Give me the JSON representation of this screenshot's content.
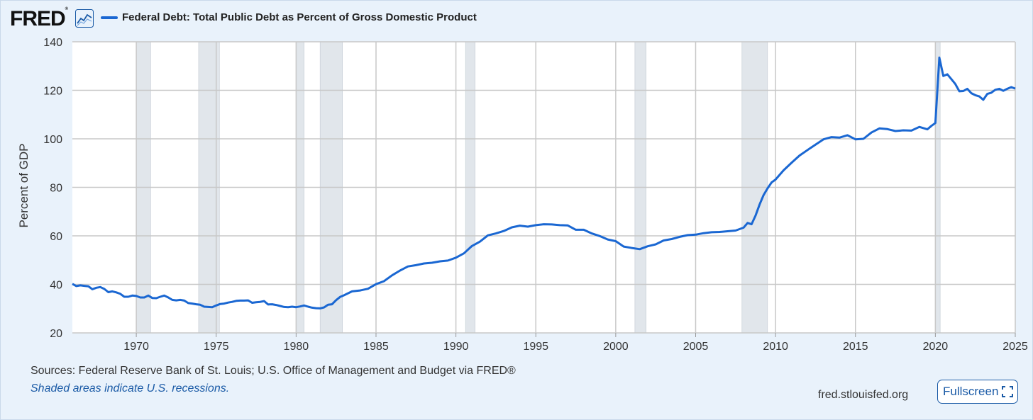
{
  "header": {
    "logo": "FRED",
    "title": "Federal Debt: Total Public Debt as Percent of Gross Domestic Product"
  },
  "footer": {
    "sources": "Sources: Federal Reserve Bank of St. Louis; U.S. Office of Management and Budget via FRED®",
    "recessions_note": "Shaded areas indicate U.S. recessions.",
    "site": "fred.stlouisfed.org",
    "fullscreen_label": "Fullscreen"
  },
  "colors": {
    "line": "#1a67d2",
    "recession": "#e1e6eb",
    "grid": "#c8c8c8",
    "background": "#e9f2fb"
  },
  "icons": [
    "fred-chart-icon",
    "fullscreen-icon"
  ],
  "chart_data": {
    "type": "line",
    "title": "Federal Debt: Total Public Debt as Percent of Gross Domestic Product",
    "xlabel": "",
    "ylabel": "Percent of GDP",
    "xlim": [
      1966,
      2025
    ],
    "ylim": [
      20,
      140
    ],
    "xticks": [
      1970,
      1975,
      1980,
      1985,
      1990,
      1995,
      2000,
      2005,
      2010,
      2015,
      2020,
      2025
    ],
    "yticks": [
      20,
      40,
      60,
      80,
      100,
      120,
      140
    ],
    "grid": true,
    "recessions": [
      [
        1970.0,
        1970.9
      ],
      [
        1973.9,
        1975.2
      ],
      [
        1980.0,
        1980.5
      ],
      [
        1981.5,
        1982.9
      ],
      [
        1990.6,
        1991.2
      ],
      [
        2001.2,
        2001.9
      ],
      [
        2007.9,
        2009.5
      ],
      [
        2020.0,
        2020.3
      ]
    ],
    "series": [
      {
        "name": "Federal Debt: Total Public Debt as Percent of Gross Domestic Product",
        "x": [
          1966.0,
          1966.25,
          1966.5,
          1966.75,
          1967.0,
          1967.25,
          1967.5,
          1967.75,
          1968.0,
          1968.25,
          1968.5,
          1968.75,
          1969.0,
          1969.25,
          1969.5,
          1969.75,
          1970.0,
          1970.25,
          1970.5,
          1970.75,
          1971.0,
          1971.25,
          1971.5,
          1971.75,
          1972.0,
          1972.25,
          1972.5,
          1972.75,
          1973.0,
          1973.25,
          1973.5,
          1973.75,
          1974.0,
          1974.25,
          1974.5,
          1974.75,
          1975.0,
          1975.25,
          1975.5,
          1975.75,
          1976.0,
          1976.25,
          1976.5,
          1976.75,
          1977.0,
          1977.25,
          1977.5,
          1977.75,
          1978.0,
          1978.25,
          1978.5,
          1978.75,
          1979.0,
          1979.25,
          1979.5,
          1979.75,
          1980.0,
          1980.25,
          1980.5,
          1980.75,
          1981.0,
          1981.25,
          1981.5,
          1981.75,
          1982.0,
          1982.25,
          1982.5,
          1982.75,
          1983.0,
          1983.5,
          1984.0,
          1984.5,
          1985.0,
          1985.5,
          1986.0,
          1986.5,
          1987.0,
          1987.5,
          1988.0,
          1988.5,
          1989.0,
          1989.5,
          1990.0,
          1990.5,
          1991.0,
          1991.5,
          1992.0,
          1992.5,
          1993.0,
          1993.5,
          1994.0,
          1994.5,
          1995.0,
          1995.5,
          1996.0,
          1996.5,
          1997.0,
          1997.5,
          1998.0,
          1998.5,
          1999.0,
          1999.5,
          2000.0,
          2000.5,
          2001.0,
          2001.5,
          2002.0,
          2002.5,
          2003.0,
          2003.5,
          2004.0,
          2004.5,
          2005.0,
          2005.5,
          2006.0,
          2006.5,
          2007.0,
          2007.5,
          2008.0,
          2008.25,
          2008.5,
          2008.75,
          2009.0,
          2009.25,
          2009.5,
          2009.75,
          2010.0,
          2010.5,
          2011.0,
          2011.5,
          2012.0,
          2012.5,
          2013.0,
          2013.5,
          2014.0,
          2014.5,
          2015.0,
          2015.5,
          2016.0,
          2016.5,
          2017.0,
          2017.5,
          2018.0,
          2018.5,
          2019.0,
          2019.5,
          2019.75,
          2020.0,
          2020.25,
          2020.5,
          2020.75,
          2021.0,
          2021.25,
          2021.5,
          2021.75,
          2022.0,
          2022.25,
          2022.5,
          2022.75,
          2023.0,
          2023.25,
          2023.5,
          2023.75,
          2024.0,
          2024.25,
          2024.5,
          2024.75,
          2025.0
        ],
        "values": [
          40.2,
          39.3,
          39.6,
          39.4,
          39.2,
          38.0,
          38.6,
          38.9,
          38.1,
          36.8,
          37.1,
          36.7,
          36.1,
          34.9,
          34.9,
          35.4,
          35.2,
          34.6,
          34.6,
          35.4,
          34.4,
          34.3,
          34.9,
          35.4,
          34.6,
          33.6,
          33.4,
          33.6,
          33.3,
          32.3,
          32.1,
          31.8,
          31.6,
          30.8,
          30.7,
          30.6,
          31.3,
          31.9,
          32.1,
          32.5,
          32.8,
          33.2,
          33.3,
          33.3,
          33.4,
          32.4,
          32.6,
          32.8,
          33.1,
          31.7,
          31.8,
          31.5,
          31.1,
          30.7,
          30.6,
          30.8,
          30.6,
          30.9,
          31.3,
          30.8,
          30.4,
          30.2,
          30.1,
          30.5,
          31.6,
          31.8,
          33.5,
          34.8,
          35.5,
          37.1,
          37.5,
          38.2,
          40.1,
          41.3,
          43.7,
          45.7,
          47.4,
          47.9,
          48.6,
          48.9,
          49.5,
          49.8,
          51.0,
          52.8,
          55.8,
          57.6,
          60.2,
          61.0,
          62.0,
          63.5,
          64.2,
          63.8,
          64.4,
          64.8,
          64.7,
          64.4,
          64.3,
          62.5,
          62.5,
          61.0,
          59.9,
          58.5,
          57.8,
          55.6,
          55.0,
          54.5,
          55.7,
          56.5,
          58.1,
          58.7,
          59.6,
          60.3,
          60.5,
          61.1,
          61.5,
          61.6,
          61.9,
          62.2,
          63.4,
          65.3,
          64.8,
          68.4,
          72.9,
          76.8,
          79.6,
          82.0,
          83.2,
          87.0,
          90.1,
          93.1,
          95.4,
          97.6,
          99.8,
          100.7,
          100.5,
          101.5,
          99.8,
          100.0,
          102.6,
          104.3,
          104.0,
          103.2,
          103.5,
          103.4,
          104.9,
          103.9,
          105.3,
          106.5,
          133.5,
          125.9,
          126.6,
          124.6,
          122.6,
          119.6,
          119.7,
          120.6,
          118.8,
          118.0,
          117.5,
          116.1,
          118.5,
          119.0,
          120.2,
          120.6,
          119.8,
          120.6,
          121.3,
          120.7
        ]
      }
    ]
  }
}
